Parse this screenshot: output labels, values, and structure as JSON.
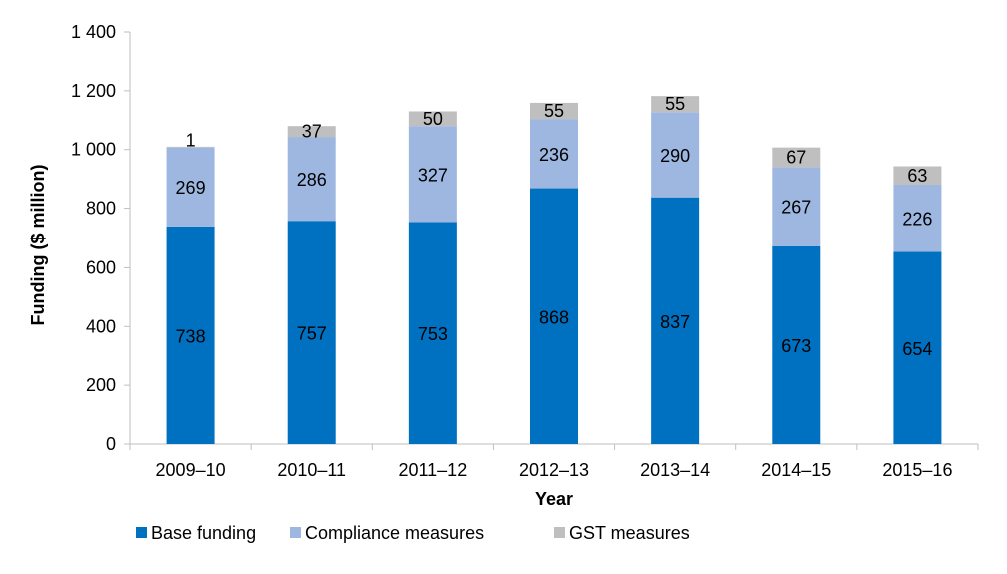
{
  "chart_data": {
    "type": "bar",
    "stacked": true,
    "title": "",
    "xlabel": "Year",
    "ylabel": "Funding ($ million)",
    "ylim": [
      0,
      1400
    ],
    "yticks": [
      0,
      200,
      400,
      600,
      800,
      1000,
      1200,
      1400
    ],
    "ytick_labels": [
      "0",
      "200",
      "400",
      "600",
      "800",
      "1 000",
      "1 200",
      "1 400"
    ],
    "categories": [
      "2009–10",
      "2010–11",
      "2011–12",
      "2012–13",
      "2013–14",
      "2014–15",
      "2015–16"
    ],
    "series": [
      {
        "name": "Base funding",
        "color": "#0070C0",
        "values": [
          738,
          757,
          753,
          868,
          837,
          673,
          654
        ],
        "labels": [
          "738",
          "757",
          "753",
          "868",
          "837",
          "673",
          "654"
        ]
      },
      {
        "name": "Compliance measures",
        "color": "#9DB7E0",
        "values": [
          269,
          286,
          327,
          236,
          290,
          267,
          226
        ],
        "labels": [
          "269",
          "286",
          "327",
          "236",
          "290",
          "267",
          "226"
        ]
      },
      {
        "name": "GST measures",
        "color": "#BFBFBF",
        "values": [
          1,
          37,
          50,
          55,
          55,
          67,
          63
        ],
        "labels": [
          "1",
          "37",
          "50",
          "55",
          "55",
          "67",
          "63"
        ]
      }
    ],
    "legend_position": "bottom-left",
    "grid": false
  }
}
